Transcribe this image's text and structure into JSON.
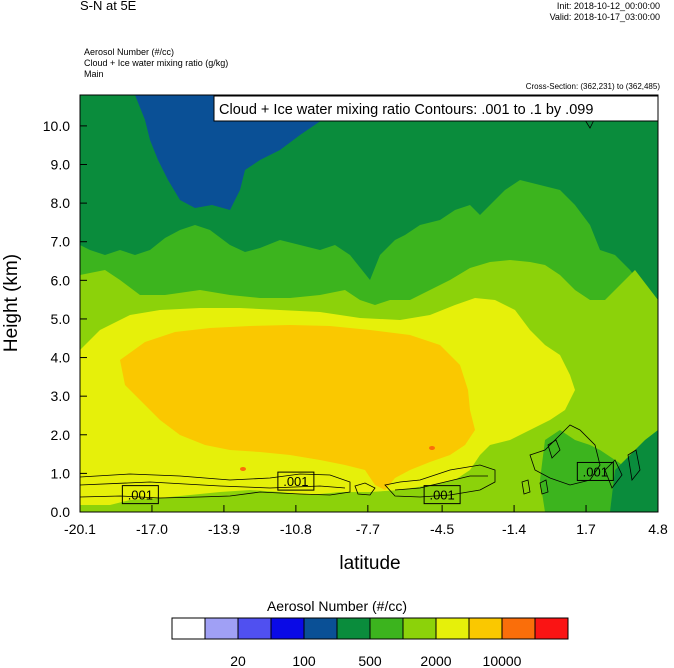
{
  "header": {
    "title": "S-N at 5E",
    "init": "Init: 2018-10-12_00:00:00",
    "valid": "Valid: 2018-10-17_03:00:00",
    "fields": [
      "Aerosol Number   (#/cc)",
      "Cloud + Ice water mixing ratio   (g/kg)",
      "Main"
    ],
    "cross_section": "Cross-Section: (362,231) to (362,485)"
  },
  "chart_data": {
    "type": "heatmap",
    "contour_label": "Cloud + Ice water mixing ratio Contours: .001 to .1 by .099",
    "xlabel": "latitude",
    "ylabel": "Height (km)",
    "xlim": [
      -20.1,
      4.8
    ],
    "ylim": [
      0.0,
      10.8
    ],
    "x_ticks": [
      -20.1,
      -17.0,
      -13.9,
      -10.8,
      -7.7,
      -4.5,
      -1.4,
      1.7,
      4.8
    ],
    "x_tick_labels": [
      "-20.1",
      "-17.0",
      "-13.9",
      "-10.8",
      "-7.7",
      "-4.5",
      "-1.4",
      "1.7",
      "4.8"
    ],
    "y_ticks": [
      0,
      1,
      2,
      3,
      4,
      5,
      6,
      7,
      8,
      9,
      10
    ],
    "y_tick_labels": [
      "0.0",
      "1.0",
      "2.0",
      "3.0",
      "4.0",
      "5.0",
      "6.0",
      "7.0",
      "8.0",
      "9.0",
      "10.0"
    ],
    "contour_value_labels": [
      {
        "text": ".001",
        "x": -17.5,
        "y": 0.45
      },
      {
        "text": ".001",
        "x": -10.8,
        "y": 0.8
      },
      {
        "text": ".001",
        "x": -4.5,
        "y": 0.45
      },
      {
        "text": ".001",
        "x": 2.1,
        "y": 1.05
      }
    ],
    "legend": {
      "title": "Aerosol Number  (#/cc)",
      "colors": [
        "#ffffff",
        "#a0a0f5",
        "#5050f0",
        "#0a0ae6",
        "#0a5096",
        "#0a8c3c",
        "#3cb41e",
        "#8cd20a",
        "#e6f00a",
        "#fac800",
        "#fa6e0a",
        "#fa1414"
      ],
      "labels": [
        {
          "text": "20",
          "after_box": 2
        },
        {
          "text": "100",
          "after_box": 4
        },
        {
          "text": "500",
          "after_box": 6
        },
        {
          "text": "2000",
          "after_box": 8
        },
        {
          "text": "10000",
          "after_box": 10
        }
      ]
    }
  }
}
